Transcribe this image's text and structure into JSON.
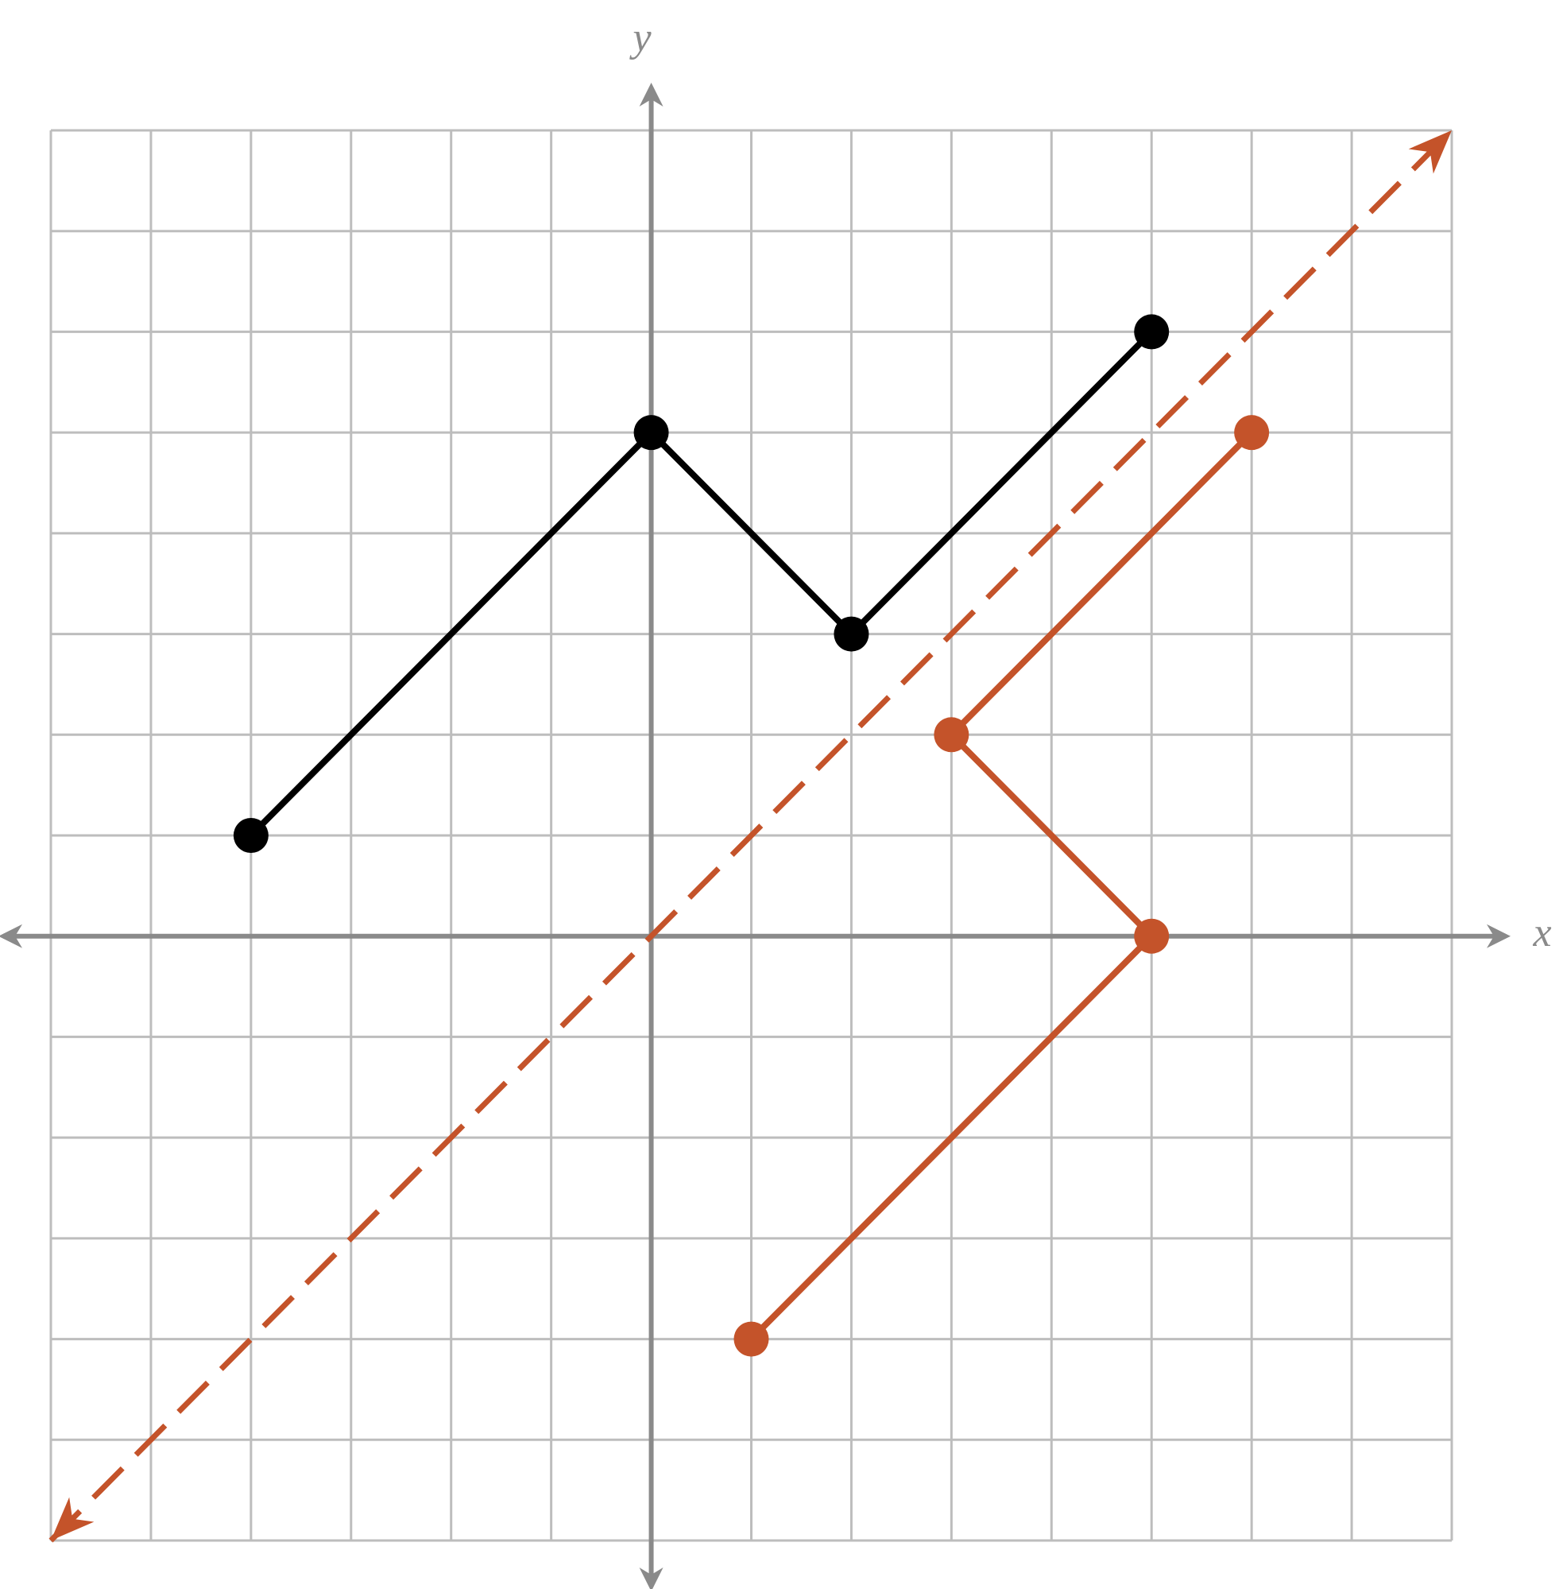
{
  "chart_data": {
    "type": "line",
    "x_label": "x",
    "y_label": "y",
    "xlim": [
      -6,
      8
    ],
    "ylim": [
      -6,
      8
    ],
    "xticks": [
      -6,
      -5,
      -4,
      -3,
      -2,
      -1,
      0,
      1,
      2,
      3,
      4,
      5,
      6,
      7,
      8
    ],
    "yticks": [
      -6,
      -5,
      -4,
      -3,
      -2,
      -1,
      0,
      1,
      2,
      3,
      4,
      5,
      6,
      7,
      8
    ],
    "grid": true,
    "series": [
      {
        "color": "#000000",
        "x": [
          -4,
          0,
          2,
          5
        ],
        "values": [
          1,
          5,
          3,
          6
        ],
        "markers": true,
        "dashed": false,
        "arrows": false
      },
      {
        "color": "#c4532a",
        "x": [
          1,
          5,
          3,
          6
        ],
        "values": [
          -4,
          0,
          2,
          5
        ],
        "markers": true,
        "dashed": false,
        "arrows": false
      },
      {
        "color": "#c4532a",
        "x": [
          -6,
          8
        ],
        "values": [
          -6,
          8
        ],
        "markers": false,
        "dashed": true,
        "arrows": true
      }
    ]
  }
}
